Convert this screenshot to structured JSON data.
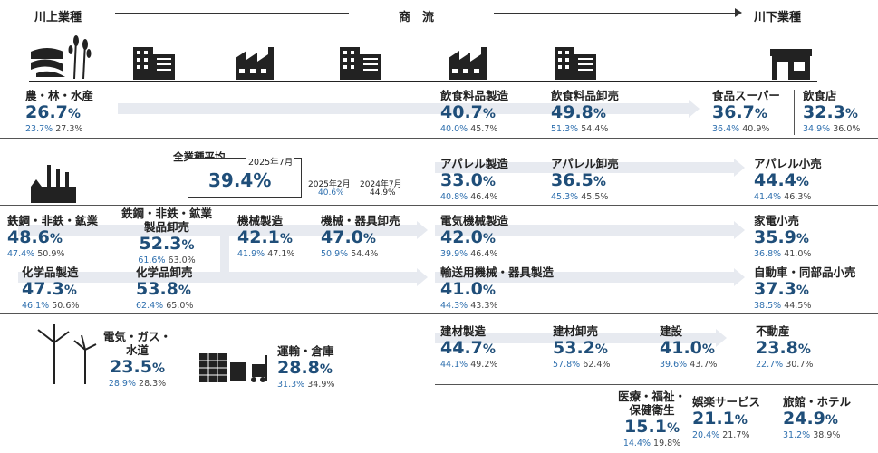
{
  "header": {
    "upstream": "川上業種",
    "center": "商　流",
    "downstream": "川下業種"
  },
  "average": {
    "label": "全業種平均",
    "current_label": "2025年7月",
    "current_value": "39.4%",
    "label_feb": "2025年2月",
    "value_feb": "40.6%",
    "label_prev": "2024年7月",
    "value_prev": "44.9%"
  },
  "industries": [
    {
      "id": "agri",
      "name": "農・林・水産",
      "value": "26.7",
      "a": "23.7%",
      "b": "27.3%"
    },
    {
      "id": "food-mfg",
      "name": "飲食料品製造",
      "value": "40.7",
      "a": "40.0%",
      "b": "45.7%"
    },
    {
      "id": "food-whl",
      "name": "飲食料品卸売",
      "value": "49.8",
      "a": "51.3%",
      "b": "54.4%"
    },
    {
      "id": "supermarket",
      "name": "食品スーパー",
      "value": "36.7",
      "a": "36.4%",
      "b": "40.9%"
    },
    {
      "id": "restaurant",
      "name": "飲食店",
      "value": "32.3",
      "a": "34.9%",
      "b": "36.0%"
    },
    {
      "id": "apparel-mfg",
      "name": "アパレル製造",
      "value": "33.0",
      "a": "40.8%",
      "b": "46.4%"
    },
    {
      "id": "apparel-whl",
      "name": "アパレル卸売",
      "value": "36.5",
      "a": "45.3%",
      "b": "45.5%"
    },
    {
      "id": "apparel-ret",
      "name": "アパレル小売",
      "value": "44.4",
      "a": "41.4%",
      "b": "46.3%"
    },
    {
      "id": "steel",
      "name": "鉄鋼・非鉄・鉱業",
      "value": "48.6",
      "a": "47.4%",
      "b": "50.9%"
    },
    {
      "id": "steel-whl",
      "name": "鉄鋼・非鉄・鉱業\n製品卸売",
      "value": "52.3",
      "a": "61.6%",
      "b": "63.0%"
    },
    {
      "id": "machine-mfg",
      "name": "機械製造",
      "value": "42.1",
      "a": "41.9%",
      "b": "47.1%"
    },
    {
      "id": "machine-whl",
      "name": "機械・器具卸売",
      "value": "47.0",
      "a": "50.9%",
      "b": "54.4%"
    },
    {
      "id": "elec-mfg",
      "name": "電気機械製造",
      "value": "42.0",
      "a": "39.9%",
      "b": "46.4%"
    },
    {
      "id": "appliance-ret",
      "name": "家電小売",
      "value": "35.9",
      "a": "36.8%",
      "b": "41.0%"
    },
    {
      "id": "chem-mfg",
      "name": "化学品製造",
      "value": "47.3",
      "a": "46.1%",
      "b": "50.6%"
    },
    {
      "id": "chem-whl",
      "name": "化学品卸売",
      "value": "53.8",
      "a": "62.4%",
      "b": "65.0%"
    },
    {
      "id": "transport-mfg",
      "name": "輸送用機械・器具製造",
      "value": "41.0",
      "a": "44.3%",
      "b": "43.3%"
    },
    {
      "id": "auto-ret",
      "name": "自動車・同部品小売",
      "value": "37.3",
      "a": "38.5%",
      "b": "44.5%"
    },
    {
      "id": "utility",
      "name": "電気・ガス・\n水道",
      "value": "23.5",
      "a": "28.9%",
      "b": "28.3%"
    },
    {
      "id": "logistics",
      "name": "運輸・倉庫",
      "value": "28.8",
      "a": "31.3%",
      "b": "34.9%"
    },
    {
      "id": "bldmat-mfg",
      "name": "建材製造",
      "value": "44.7",
      "a": "44.1%",
      "b": "49.2%"
    },
    {
      "id": "bldmat-whl",
      "name": "建材卸売",
      "value": "53.2",
      "a": "57.8%",
      "b": "62.4%"
    },
    {
      "id": "construction",
      "name": "建設",
      "value": "41.0",
      "a": "39.6%",
      "b": "43.7%"
    },
    {
      "id": "realestate",
      "name": "不動産",
      "value": "23.8",
      "a": "22.7%",
      "b": "30.7%"
    },
    {
      "id": "medical",
      "name": "医療・福祉・\n保健衛生",
      "value": "15.1",
      "a": "14.4%",
      "b": "19.8%"
    },
    {
      "id": "entertainment",
      "name": "娯楽サービス",
      "value": "21.1",
      "a": "20.4%",
      "b": "21.7%"
    },
    {
      "id": "hotel",
      "name": "旅館・ホテル",
      "value": "24.9",
      "a": "31.2%",
      "b": "38.9%"
    }
  ],
  "pct_suffix": "%",
  "icons": [
    "farm-icon",
    "office-building-icon",
    "factory-icon",
    "office-building-icon",
    "factory-icon",
    "office-building-icon",
    "shop-icon",
    "power-plant-icon",
    "wind-turbine-icon",
    "warehouse-forklift-icon"
  ]
}
